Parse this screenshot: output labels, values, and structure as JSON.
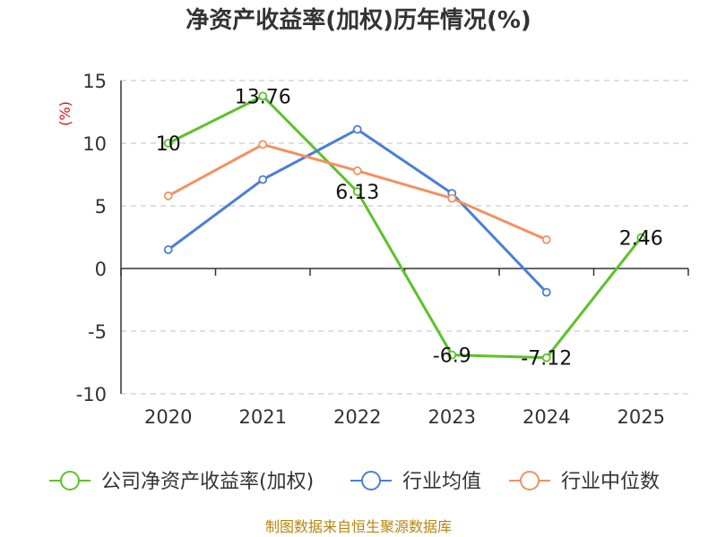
{
  "chart_data": {
    "type": "line",
    "title": "净资产收益率(加权)历年情况(%)",
    "ylabel": "(%)",
    "categories": [
      "2020",
      "2021",
      "2022",
      "2023",
      "2024",
      "2025"
    ],
    "ylim": [
      -10,
      15
    ],
    "yticks": [
      15,
      10,
      5,
      0,
      -5,
      -10
    ],
    "grid": true,
    "legend_position": "bottom",
    "series": [
      {
        "name": "公司净资产收益率(加权)",
        "color": "#5cc228",
        "values": [
          10,
          13.76,
          6.13,
          -6.9,
          -7.12,
          2.46
        ],
        "labels": [
          "10",
          "13.76",
          "6.13",
          "-6.9",
          "-7.12",
          "2.46"
        ]
      },
      {
        "name": "行业均值",
        "color": "#4a7ed9",
        "values": [
          1.5,
          7.1,
          11.1,
          6.0,
          -1.9,
          null
        ]
      },
      {
        "name": "行业中位数",
        "color": "#f59060",
        "values": [
          5.8,
          9.9,
          7.8,
          5.6,
          2.3,
          null
        ]
      }
    ],
    "source": "制图数据来自恒生聚源数据库"
  }
}
